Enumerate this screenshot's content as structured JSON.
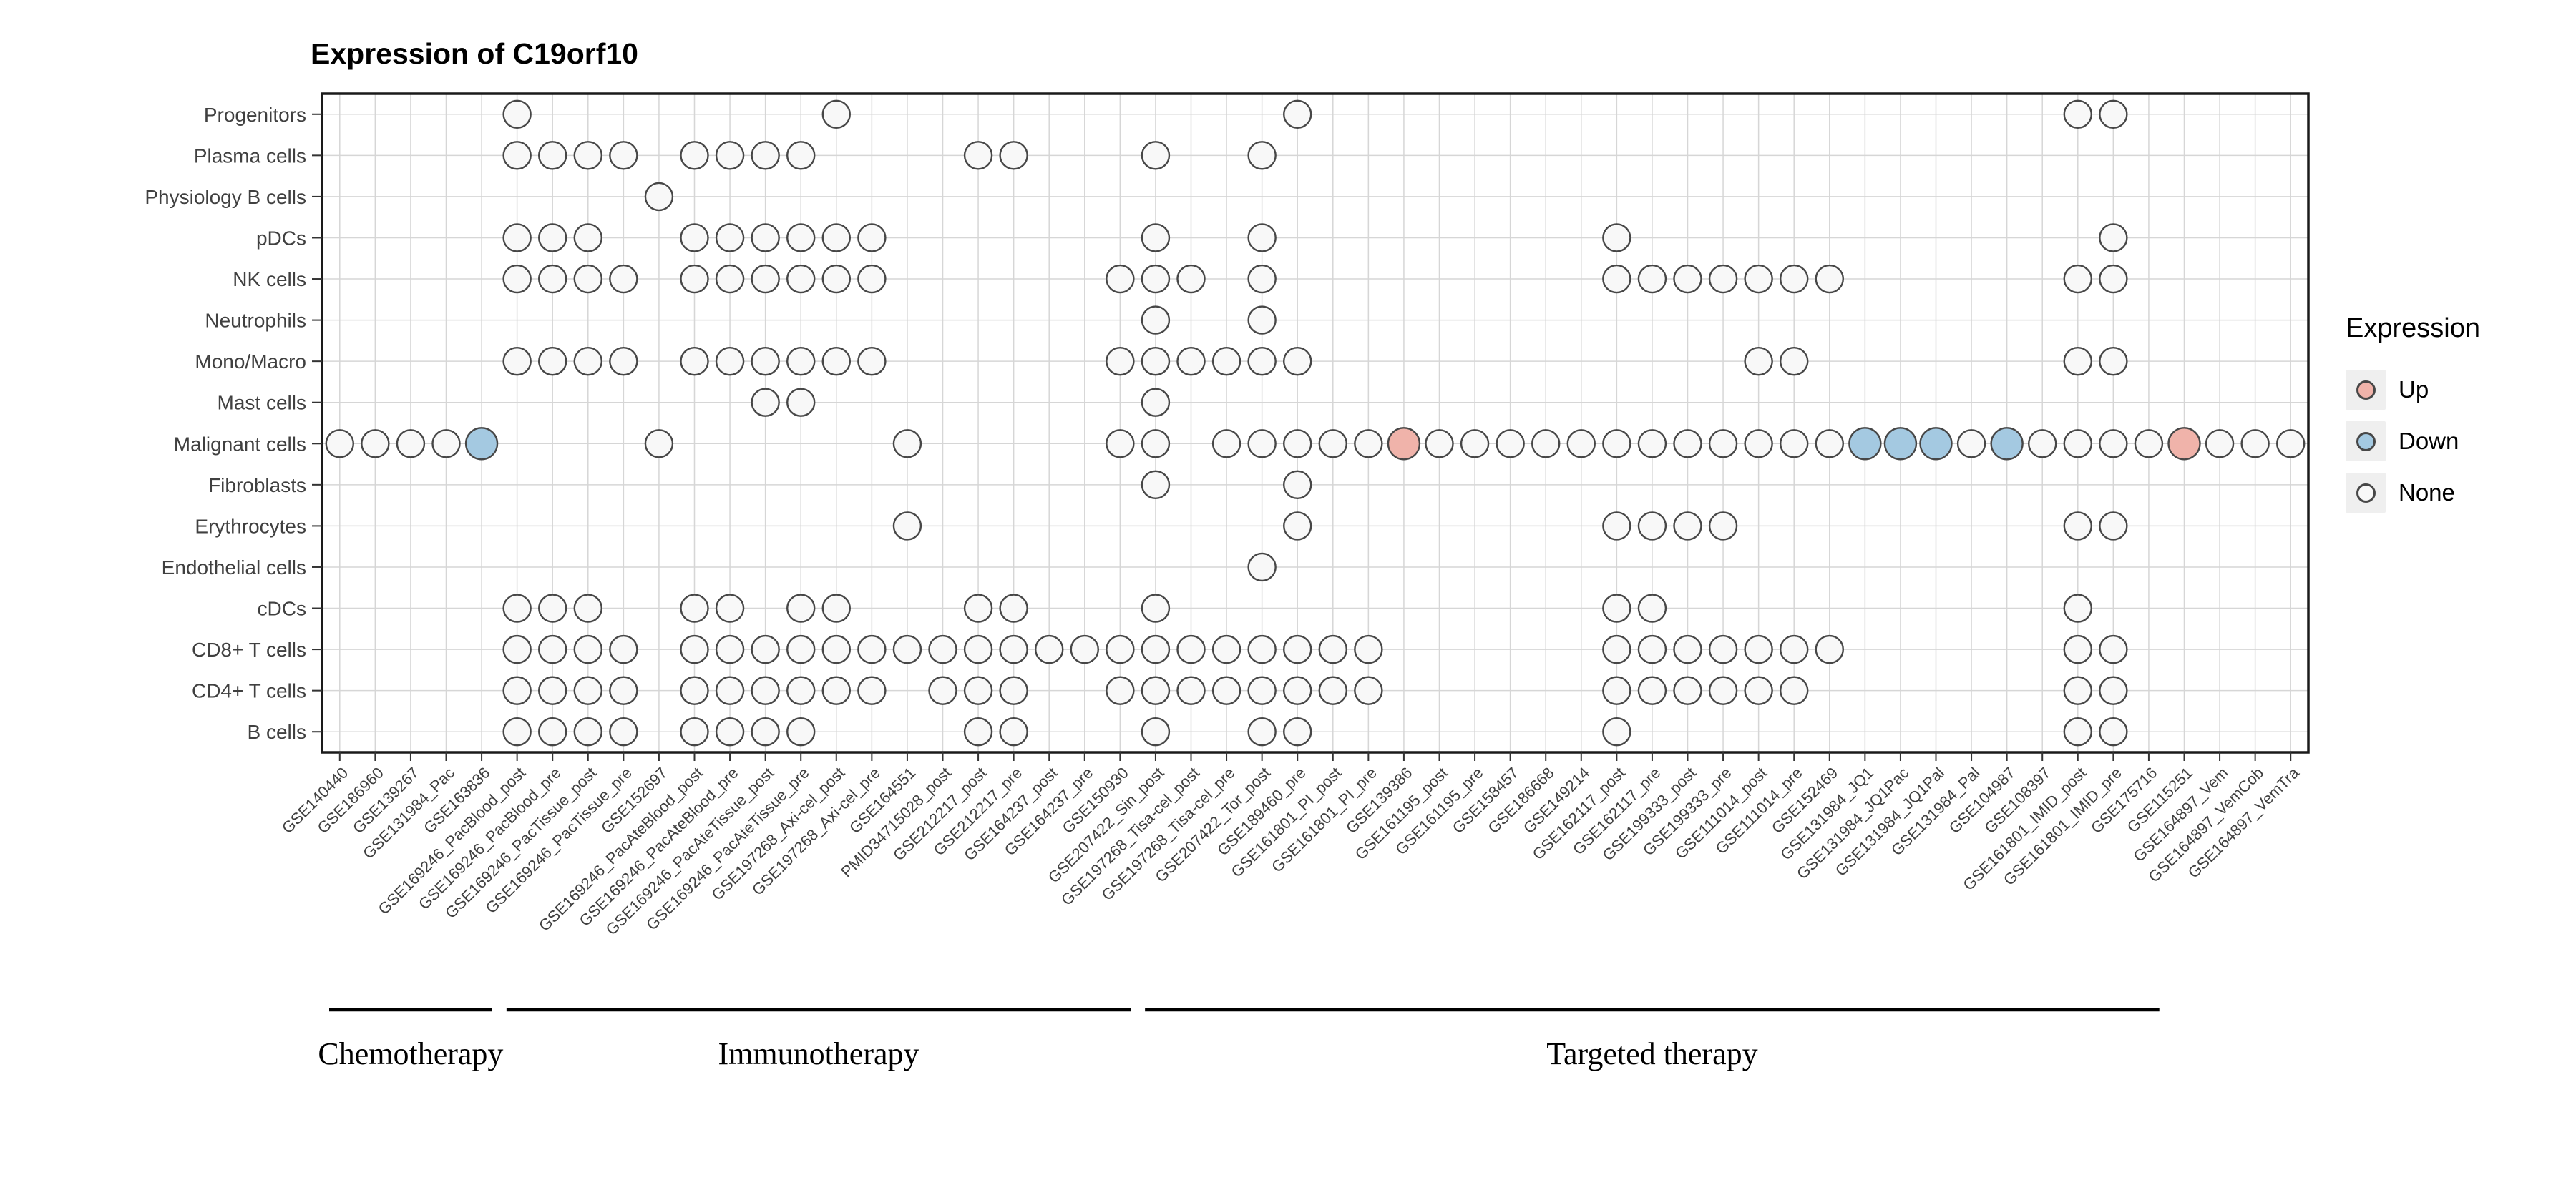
{
  "title": "Expression of C19orf10",
  "legend": {
    "title": "Expression",
    "items": [
      {
        "label": "Up",
        "color": "#f0b3aa"
      },
      {
        "label": "Down",
        "color": "#a4c9e1"
      },
      {
        "label": "None",
        "color": "#f8f8f8"
      }
    ]
  },
  "colors": {
    "up": "#f0b3aa",
    "down": "#a4c9e1",
    "none": "#f8f8f8",
    "dot_stroke": "#474747",
    "grid": "#d6d6d6",
    "panel_border": "#1a1a1a",
    "axis_text": "#404040",
    "tick": "#333333",
    "group_line": "#000000"
  },
  "chart_data": {
    "type": "scatter",
    "subtype": "categorical-dot-matrix",
    "title": "Expression of C19orf10",
    "legend_position": "right",
    "grid": true,
    "x_categories": [
      "GSE140440",
      "GSE186960",
      "GSE139267",
      "GSE131984_Pac",
      "GSE163836",
      "GSE169246_PacBlood_post",
      "GSE169246_PacBlood_pre",
      "GSE169246_PacTissue_post",
      "GSE169246_PacTissue_pre",
      "GSE152697",
      "GSE169246_PacAteBlood_post",
      "GSE169246_PacAteBlood_pre",
      "GSE169246_PacAteTissue_post",
      "GSE169246_PacAteTissue_pre",
      "GSE197268_Axi-cel_post",
      "GSE197268_Axi-cel_pre",
      "GSE164551",
      "PMID34715028_post",
      "GSE212217_post",
      "GSE212217_pre",
      "GSE164237_post",
      "GSE164237_pre",
      "GSE150930",
      "GSE207422_Sin_post",
      "GSE197268_Tisa-cel_post",
      "GSE197268_Tisa-cel_pre",
      "GSE207422_Tor_post",
      "GSE189460_pre",
      "GSE161801_PI_post",
      "GSE161801_PI_pre",
      "GSE139386",
      "GSE161195_post",
      "GSE161195_pre",
      "GSE158457",
      "GSE186668",
      "GSE149214",
      "GSE162117_post",
      "GSE162117_pre",
      "GSE199333_post",
      "GSE199333_pre",
      "GSE111014_post",
      "GSE111014_pre",
      "GSE152469",
      "GSE131984_JQ1",
      "GSE131984_JQ1Pac",
      "GSE131984_JQ1Pal",
      "GSE131984_Pal",
      "GSE104987",
      "GSE108397",
      "GSE161801_IMID_post",
      "GSE161801_IMID_pre",
      "GSE175716",
      "GSE115251",
      "GSE164897_Vem",
      "GSE164897_VemCob",
      "GSE164897_VemTra"
    ],
    "y_categories": [
      "Progenitors",
      "Plasma cells",
      "Physiology B cells",
      "pDCs",
      "NK cells",
      "Neutrophils",
      "Mono/Macro",
      "Mast cells",
      "Malignant cells",
      "Fibroblasts",
      "Erythrocytes",
      "Endothelial cells",
      "cDCs",
      "CD8+ T cells",
      "CD4+ T cells",
      "B cells"
    ],
    "dots": [
      {
        "cell_type": "Progenitors",
        "cols": [
          6,
          15,
          28,
          50,
          51
        ]
      },
      {
        "cell_type": "Plasma cells",
        "cols": [
          6,
          7,
          8,
          9,
          11,
          12,
          13,
          14,
          19,
          20,
          24,
          27
        ]
      },
      {
        "cell_type": "Physiology B cells",
        "cols": [
          10
        ]
      },
      {
        "cell_type": "pDCs",
        "cols": [
          6,
          7,
          8,
          11,
          12,
          13,
          14,
          15,
          16,
          24,
          27,
          37,
          51
        ]
      },
      {
        "cell_type": "NK cells",
        "cols": [
          6,
          7,
          8,
          9,
          11,
          12,
          13,
          14,
          15,
          16,
          23,
          24,
          25,
          27,
          37,
          38,
          39,
          40,
          41,
          42,
          43,
          50,
          51
        ]
      },
      {
        "cell_type": "Neutrophils",
        "cols": [
          24,
          27
        ]
      },
      {
        "cell_type": "Mono/Macro",
        "cols": [
          6,
          7,
          8,
          9,
          11,
          12,
          13,
          14,
          15,
          16,
          23,
          24,
          25,
          26,
          27,
          28,
          41,
          42,
          50,
          51
        ]
      },
      {
        "cell_type": "Mast cells",
        "cols": [
          13,
          14,
          24
        ]
      },
      {
        "cell_type": "Malignant cells",
        "cols": [
          1,
          2,
          3,
          4,
          5,
          10,
          17,
          23,
          24,
          26,
          27,
          28,
          29,
          30,
          31,
          32,
          33,
          34,
          35,
          36,
          37,
          38,
          39,
          40,
          41,
          42,
          43,
          44,
          45,
          46,
          47,
          48,
          49,
          50,
          51,
          52,
          53,
          54,
          55,
          56
        ]
      },
      {
        "cell_type": "Fibroblasts",
        "cols": [
          24,
          28
        ]
      },
      {
        "cell_type": "Erythrocytes",
        "cols": [
          17,
          28,
          37,
          38,
          39,
          40,
          50,
          51
        ]
      },
      {
        "cell_type": "Endothelial cells",
        "cols": [
          27
        ]
      },
      {
        "cell_type": "cDCs",
        "cols": [
          6,
          7,
          8,
          11,
          12,
          14,
          15,
          19,
          20,
          24,
          37,
          38,
          50
        ]
      },
      {
        "cell_type": "CD8+ T cells",
        "cols": [
          6,
          7,
          8,
          9,
          11,
          12,
          13,
          14,
          15,
          16,
          17,
          18,
          19,
          20,
          21,
          22,
          23,
          24,
          25,
          26,
          27,
          28,
          29,
          30,
          37,
          38,
          39,
          40,
          41,
          42,
          43,
          50,
          51
        ]
      },
      {
        "cell_type": "CD4+ T cells",
        "cols": [
          6,
          7,
          8,
          9,
          11,
          12,
          13,
          14,
          15,
          16,
          18,
          19,
          20,
          23,
          24,
          25,
          26,
          27,
          28,
          29,
          30,
          37,
          38,
          39,
          40,
          41,
          42,
          50,
          51
        ]
      },
      {
        "cell_type": "B cells",
        "cols": [
          6,
          7,
          8,
          9,
          11,
          12,
          13,
          14,
          19,
          20,
          24,
          27,
          28,
          37,
          50,
          51
        ]
      }
    ],
    "expression_marks": [
      {
        "cell_type": "Malignant cells",
        "col": 5,
        "value": "Down"
      },
      {
        "cell_type": "Malignant cells",
        "col": 31,
        "value": "Up"
      },
      {
        "cell_type": "Malignant cells",
        "col": 44,
        "value": "Down"
      },
      {
        "cell_type": "Malignant cells",
        "col": 45,
        "value": "Down"
      },
      {
        "cell_type": "Malignant cells",
        "col": 46,
        "value": "Down"
      },
      {
        "cell_type": "Malignant cells",
        "col": 48,
        "value": "Down"
      },
      {
        "cell_type": "Malignant cells",
        "col": 53,
        "value": "Up"
      }
    ],
    "groups": [
      {
        "label": "Chemotherapy",
        "col_start": 1,
        "col_end": 5
      },
      {
        "label": "Immunotherapy",
        "col_start": 6,
        "col_end": 23
      },
      {
        "label": "Targeted therapy",
        "col_start": 24,
        "col_end": 52
      }
    ]
  }
}
